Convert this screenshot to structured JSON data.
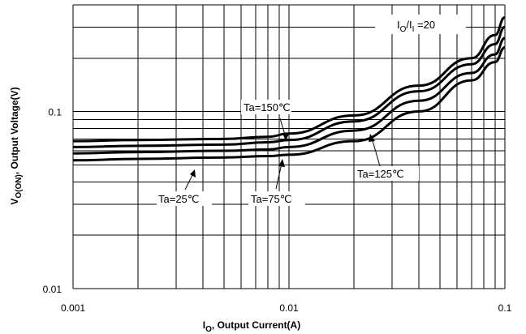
{
  "chart_data": {
    "type": "line",
    "xscale": "log",
    "yscale": "log",
    "xlim": [
      0.001,
      0.1
    ],
    "ylim": [
      0.01,
      0.4
    ],
    "grid": true,
    "xlabel": {
      "main": "I",
      "sub": "O",
      "rest": ", Output Current(A)"
    },
    "ylabel": {
      "main": "V",
      "sub": "O(ON)",
      "rest": ", Output Voltage(V)"
    },
    "xticks": [
      "0.001",
      "0.01",
      "0.1"
    ],
    "yticks": [
      "0.01",
      "0.1"
    ],
    "condition": {
      "main": "I",
      "sub1": "O",
      "mid": "/I",
      "sub2": "I",
      "rest": " =20"
    },
    "series": [
      {
        "name": "Ta=150℃",
        "x": [
          0.001,
          0.002,
          0.005,
          0.008,
          0.01,
          0.02,
          0.04,
          0.07,
          0.09,
          0.1
        ],
        "y": [
          0.068,
          0.069,
          0.07,
          0.072,
          0.075,
          0.095,
          0.14,
          0.2,
          0.27,
          0.34
        ]
      },
      {
        "name": "Ta=125℃",
        "x": [
          0.001,
          0.002,
          0.005,
          0.008,
          0.01,
          0.02,
          0.04,
          0.07,
          0.09,
          0.1
        ],
        "y": [
          0.063,
          0.064,
          0.065,
          0.067,
          0.069,
          0.088,
          0.13,
          0.185,
          0.24,
          0.3
        ]
      },
      {
        "name": "Ta=75℃",
        "x": [
          0.001,
          0.002,
          0.005,
          0.008,
          0.01,
          0.02,
          0.04,
          0.07,
          0.09,
          0.1
        ],
        "y": [
          0.058,
          0.059,
          0.06,
          0.061,
          0.063,
          0.078,
          0.115,
          0.165,
          0.21,
          0.26
        ]
      },
      {
        "name": "Ta=25℃",
        "x": [
          0.001,
          0.002,
          0.005,
          0.008,
          0.01,
          0.02,
          0.04,
          0.07,
          0.09,
          0.1
        ],
        "y": [
          0.053,
          0.054,
          0.055,
          0.056,
          0.057,
          0.068,
          0.1,
          0.15,
          0.19,
          0.23
        ]
      }
    ],
    "annotations": [
      "Ta=150℃",
      "Ta=125℃",
      "Ta=75℃",
      "Ta=25℃"
    ]
  }
}
